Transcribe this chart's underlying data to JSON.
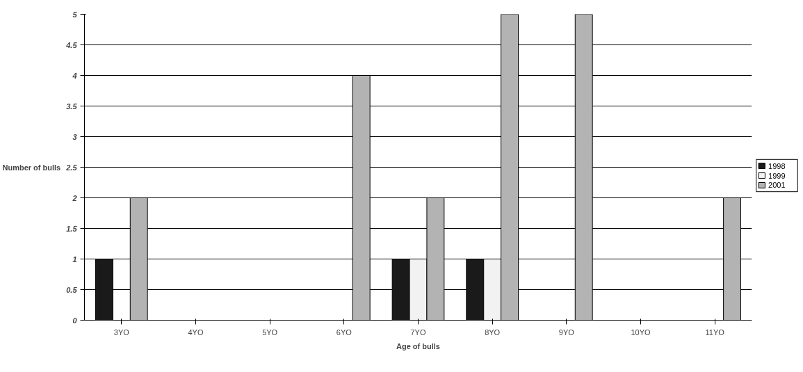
{
  "chart_data": {
    "type": "bar",
    "xlabel": "Age of bulls",
    "ylabel": "Number of bulls",
    "categories": [
      "3YO",
      "4YO",
      "5YO",
      "6YO",
      "7YO",
      "8YO",
      "9YO",
      "10YO",
      "11YO"
    ],
    "series": [
      {
        "name": "1998",
        "color": "#1a1a1a",
        "values": [
          1,
          null,
          null,
          null,
          1,
          1,
          null,
          null,
          null
        ]
      },
      {
        "name": "1999",
        "color": "#f2f2f2",
        "values": [
          null,
          null,
          null,
          null,
          1,
          1,
          null,
          null,
          null
        ]
      },
      {
        "name": "2001",
        "color": "#b3b3b3",
        "values": [
          2,
          null,
          null,
          4,
          2,
          5,
          5,
          null,
          2
        ]
      }
    ],
    "ylim": [
      0,
      5
    ],
    "yticks": [
      0,
      0.5,
      1,
      1.5,
      2,
      2.5,
      3,
      3.5,
      4,
      4.5,
      5
    ],
    "grid": "y",
    "legend": "right"
  }
}
